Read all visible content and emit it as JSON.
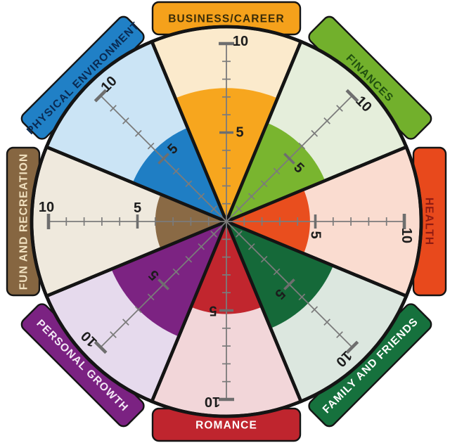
{
  "chart_data": {
    "type": "pie",
    "variant": "wheel-of-life-radial-gauge",
    "title": "",
    "legend": "none",
    "grid": "off",
    "scale": {
      "min": 0,
      "max": 10,
      "tick_step": 1,
      "major_tick_values": [
        5,
        10
      ],
      "major_tick_labels": [
        "5",
        "10"
      ]
    },
    "categories": [
      "BUSINESS/CAREER",
      "FINANCES",
      "HEALTH",
      "FAMILY AND FRIENDS",
      "ROMANCE",
      "PERSONAL GROWTH",
      "FUN AND RECREATION",
      "PHYSICAL ENVIRONMENT"
    ],
    "values": [
      7.5,
      6,
      4.7,
      6.5,
      5.2,
      7,
      4,
      5.7
    ],
    "sectors": [
      {
        "label": "BUSINESS/CAREER",
        "value": 7.5,
        "axis_angle_deg": 90,
        "fill": "#F7A61E",
        "bg": "#FBEACC",
        "tab_bg": "#F5A11B",
        "tab_text": "#3A2C08"
      },
      {
        "label": "FINANCES",
        "value": 6,
        "axis_angle_deg": 45,
        "fill": "#79B52F",
        "bg": "#E5EEDB",
        "tab_bg": "#72B02C",
        "tab_text": "#20500F"
      },
      {
        "label": "HEALTH",
        "value": 4.7,
        "axis_angle_deg": 0,
        "fill": "#E94E1E",
        "bg": "#FADCD0",
        "tab_bg": "#E8491C",
        "tab_text": "#8F1B12"
      },
      {
        "label": "FAMILY AND FRIENDS",
        "value": 6.5,
        "axis_angle_deg": -45,
        "fill": "#156939",
        "bg": "#DCE7DF",
        "tab_bg": "#16713D",
        "tab_text": "#FFFFFF"
      },
      {
        "label": "ROMANCE",
        "value": 5.2,
        "axis_angle_deg": -90,
        "fill": "#C1262E",
        "bg": "#F2D6D9",
        "tab_bg": "#BF252E",
        "tab_text": "#FFFFFF"
      },
      {
        "label": "PERSONAL GROWTH",
        "value": 7,
        "axis_angle_deg": -135,
        "fill": "#7C2382",
        "bg": "#E6DAED",
        "tab_bg": "#7B2282",
        "tab_text": "#F3E8F5"
      },
      {
        "label": "FUN AND RECREATION",
        "value": 4,
        "axis_angle_deg": 180,
        "fill": "#8A6A45",
        "bg": "#EFE9DD",
        "tab_bg": "#866641",
        "tab_text": "#F1E1C0"
      },
      {
        "label": "PHYSICAL ENVIRONMENT",
        "value": 5.7,
        "axis_angle_deg": 135,
        "fill": "#1F7EC4",
        "bg": "#CBE4F5",
        "tab_bg": "#2080C6",
        "tab_text": "#0A2A52"
      }
    ],
    "colors": {
      "outline": "#141414",
      "axis": "#7B7B7B",
      "major_tick": "#6E6E6E",
      "tick_label": "#1C1C1C",
      "background": "#FFFFFF"
    }
  }
}
